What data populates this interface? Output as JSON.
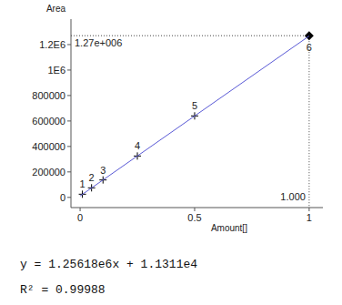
{
  "chart_data": {
    "type": "scatter",
    "x_label": "Amount[]",
    "y_label": "Area",
    "xlim": [
      -0.04,
      1.06
    ],
    "ylim": [
      -80000,
      1400000
    ],
    "xticks": [
      0,
      0.5,
      1
    ],
    "yticks": [
      0,
      200000,
      400000,
      600000,
      800000,
      {
        "value": 1000000,
        "label": "1E6"
      },
      {
        "value": 1200000,
        "label": "1.2E6"
      }
    ],
    "grid": false,
    "series": [
      {
        "type": "scatter",
        "marker": "cross",
        "color": "#000000",
        "x": [
          0.01,
          0.05,
          0.1,
          0.25,
          0.5
        ],
        "values": [
          25000,
          75000,
          137000,
          325000,
          640000
        ],
        "point_labels": [
          "1",
          "2",
          "3",
          "4",
          "5"
        ]
      },
      {
        "type": "scatter",
        "marker": "diamond",
        "color": "#000000",
        "x": [
          1
        ],
        "values": [
          1270000
        ],
        "point_labels": [
          "6"
        ]
      },
      {
        "type": "line",
        "color": "#5a5ad6",
        "x": [
          0,
          1
        ],
        "values": [
          11311,
          1267491
        ]
      }
    ],
    "annotations": [
      {
        "text": "1.27e+006",
        "y": 1270000
      },
      {
        "text": "1.000",
        "x": 1
      }
    ],
    "equation": "y = 1.25618e6x + 1.1311e4",
    "r_squared": "R² = 0.99988"
  }
}
